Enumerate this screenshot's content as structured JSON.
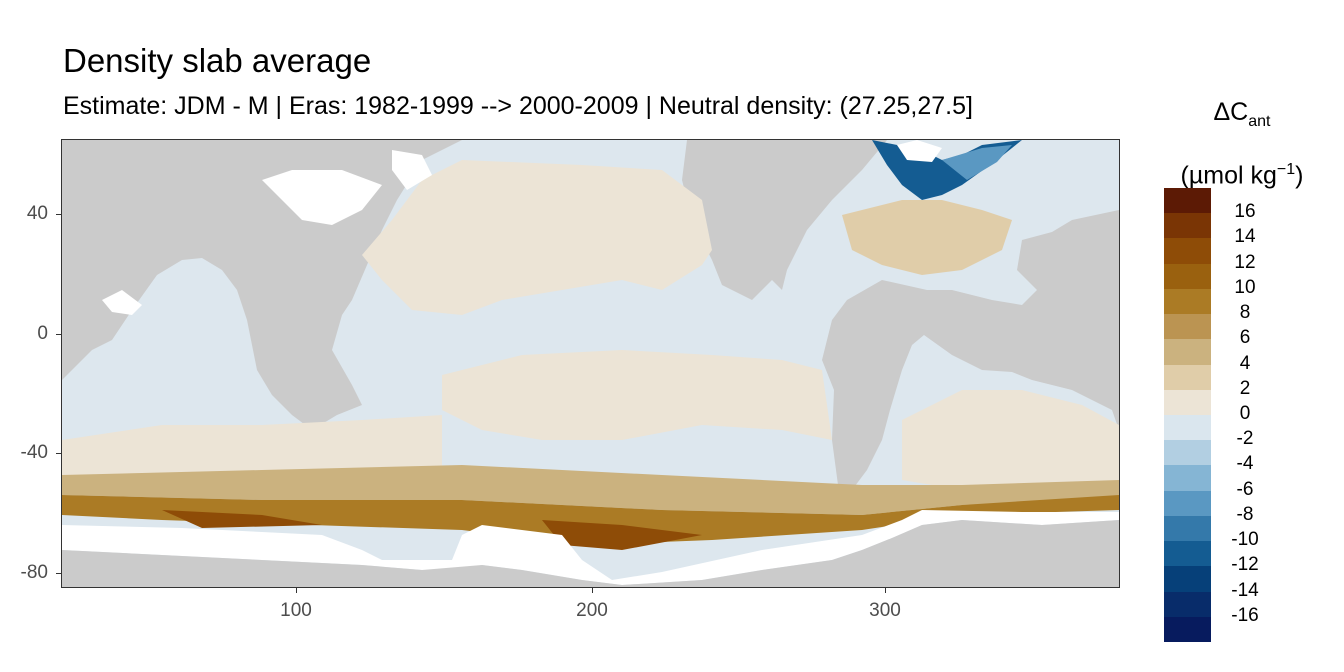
{
  "title": "Density slab average",
  "subtitle": "Estimate: JDM - M | Eras: 1982-1999 --> 2000-2009 | Neutral density: (27.25,27.5]",
  "axes": {
    "x_ticks": [
      "100",
      "200",
      "300"
    ],
    "x_tick_values": [
      100,
      200,
      300
    ],
    "y_ticks": [
      "40",
      "0",
      "-40",
      "-80"
    ],
    "y_tick_values": [
      40,
      0,
      -40,
      -80
    ],
    "xlim": [
      20,
      380
    ],
    "ylim": [
      -84,
      65
    ]
  },
  "legend": {
    "title_main": "ΔC",
    "title_sub": "ant",
    "unit_pre": "(µmol kg",
    "unit_sup": "−1",
    "unit_post": ")",
    "labels": [
      "16",
      "14",
      "12",
      "10",
      "8",
      "6",
      "4",
      "2",
      "0",
      "-2",
      "-4",
      "-6",
      "-8",
      "-10",
      "-12",
      "-14",
      "-16"
    ],
    "colors": [
      "#5c1a05",
      "#7a3505",
      "#8e4c07",
      "#9a610f",
      "#ab7b25",
      "#bb9452",
      "#cbb27f",
      "#e0cda9",
      "#ece4d6",
      "#dae6ee",
      "#b2cfe2",
      "#85b5d4",
      "#5a98c2",
      "#3479aa",
      "#145c92",
      "#064079",
      "#082c6a",
      "#071b5e"
    ]
  },
  "colors": {
    "land": "#cbcbcb",
    "ocean_light_blue": "#dde7ee",
    "ocean_light_tan": "#ece4d6",
    "no_data": "#ffffff",
    "southern_brown": "#9a610f",
    "north_atlantic_blue": "#145c92"
  }
}
